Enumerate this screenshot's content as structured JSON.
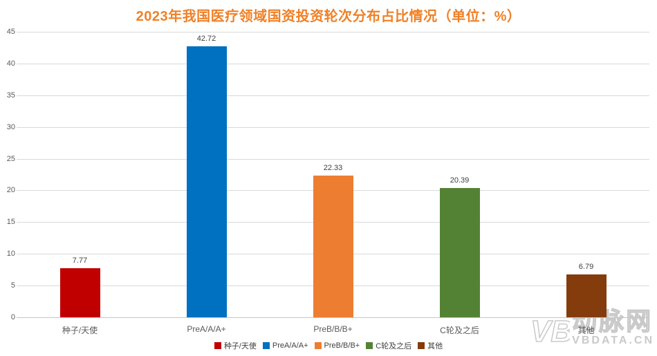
{
  "chart_data": {
    "type": "bar",
    "title": "2023年我国医疗领域国资投资轮次分布占比情况（单位：%）",
    "categories": [
      "种子/天使",
      "PreA/A/A+",
      "PreB/B/B+",
      "C轮及之后",
      "其他"
    ],
    "values": [
      7.77,
      42.72,
      22.33,
      20.39,
      6.79
    ],
    "value_labels": [
      "7.77",
      "42.72",
      "22.33",
      "20.39",
      "6.79"
    ],
    "bar_colors": [
      "#c00000",
      "#0070c0",
      "#ed7d31",
      "#548235",
      "#843c0c"
    ],
    "xlabel": "",
    "ylabel": "",
    "ylim": [
      0,
      45
    ],
    "yticks": [
      0,
      5,
      10,
      15,
      20,
      25,
      30,
      35,
      40,
      45
    ],
    "grid": true,
    "legend_position": "bottom",
    "legend": [
      {
        "label": "种子/天使",
        "color": "#c00000"
      },
      {
        "label": "PreA/A/A+",
        "color": "#0070c0"
      },
      {
        "label": "PreB/B/B+",
        "color": "#ed7d31"
      },
      {
        "label": "C轮及之后",
        "color": "#548235"
      },
      {
        "label": "其他",
        "color": "#843c0c"
      }
    ]
  },
  "colors": {
    "title": "#f08026",
    "gridline": "#d9d9d9",
    "axis_line": "#c5c5c5",
    "tick_label": "#595959",
    "value_label": "#404040",
    "category_label": "#595959",
    "legend_text": "#404040",
    "watermark": "#c9c9c9"
  },
  "watermark": {
    "logo_text": "VB",
    "brand_text": "动脉网",
    "domain_text": "VBDATA.CN"
  }
}
